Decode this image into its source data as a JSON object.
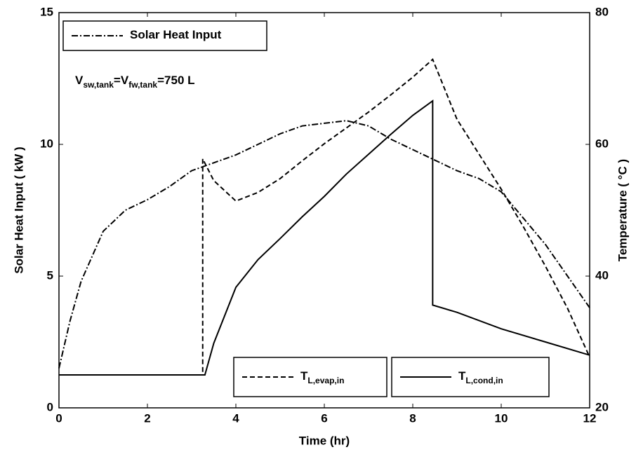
{
  "chart_data": {
    "type": "line",
    "xlabel": "Time (hr)",
    "ylabel": "Solar Heat Input ( kW )",
    "y2label": "Temperature ( °C )",
    "annotation": [
      "V",
      "sw,tank",
      "=V",
      "fw,tank",
      "=750 L"
    ],
    "xlim": [
      0,
      12
    ],
    "xticks": [
      0,
      2,
      4,
      6,
      8,
      10,
      12
    ],
    "ylim": [
      0,
      15
    ],
    "yticks": [
      0,
      5,
      10,
      15
    ],
    "y2lim": [
      20,
      80
    ],
    "y2ticks": [
      20,
      40,
      60,
      80
    ],
    "series": [
      {
        "name": "Solar Heat Input",
        "color": "#000000",
        "style": "dashdot",
        "x": [
          0,
          0.25,
          0.5,
          1,
          1.5,
          2,
          2.5,
          3,
          3.5,
          4,
          4.5,
          5,
          5.5,
          6,
          6.5,
          7,
          7.5,
          8,
          8.5,
          9,
          9.5,
          10,
          10.5,
          11,
          11.5,
          12
        ],
        "values": [
          1.5,
          3.3,
          4.8,
          6.7,
          7.5,
          7.9,
          8.4,
          9.0,
          9.3,
          9.6,
          10.0,
          10.4,
          10.7,
          10.8,
          10.9,
          10.7,
          10.2,
          9.8,
          9.4,
          9.0,
          8.7,
          8.2,
          7.2,
          6.2,
          5.0,
          3.8
        ]
      },
      {
        "name": "T",
        "name_sub": "L,evap,in",
        "color": "#000000",
        "style": "dashed",
        "axis": "y2",
        "x": [
          0,
          3.25,
          3.25,
          3.5,
          4,
          4.5,
          5,
          5.5,
          6,
          6.5,
          7,
          7.5,
          8,
          8.45,
          9,
          9.5,
          10,
          10.5,
          11,
          11.5,
          12
        ],
        "values": [
          25,
          25,
          57.8,
          54.5,
          51.4,
          52.7,
          54.8,
          57.5,
          60.1,
          62.5,
          64.9,
          67.5,
          70.2,
          72.9,
          63.8,
          58.5,
          53.2,
          47.5,
          41.5,
          35.1,
          27.7
        ]
      },
      {
        "name": "T",
        "name_sub": "L,cond,in",
        "color": "#000000",
        "style": "solid",
        "axis": "y2",
        "x": [
          0,
          3.3,
          3.5,
          4,
          4.5,
          5,
          5.5,
          6,
          6.5,
          7,
          7.5,
          8,
          8.45,
          8.45,
          9,
          10,
          11,
          12
        ],
        "values": [
          25,
          25,
          29.8,
          38.3,
          42.5,
          45.7,
          49,
          52.1,
          55.5,
          58.5,
          61.5,
          64.4,
          66.6,
          35.6,
          34.5,
          32,
          30,
          28
        ]
      }
    ]
  }
}
